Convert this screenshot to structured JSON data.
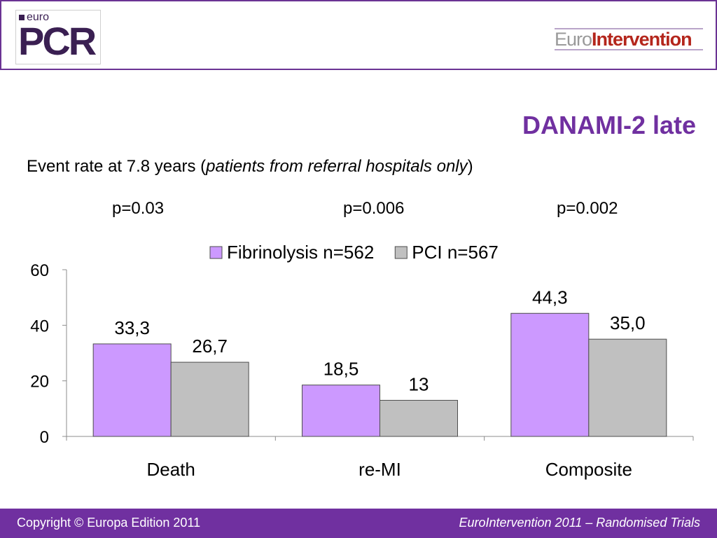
{
  "header": {
    "logo_left": {
      "small": "euro",
      "big": "PCR"
    },
    "logo_right": {
      "part1": "Euro",
      "part2": "Intervention"
    }
  },
  "slide": {
    "title": "DANAMI-2 late",
    "subtitle": {
      "prefix": "Event rate at 7.8 years (",
      "italic": "patients from referral hospitals only",
      "suffix": ")"
    },
    "pvalues": [
      "p=0.03",
      "p=0.006",
      "p=0.002"
    ]
  },
  "chart_data": {
    "type": "bar",
    "categories": [
      "Death",
      "re-MI",
      "Composite"
    ],
    "series": [
      {
        "name": "Fibrinolysis n=562",
        "color": "#cc99ff",
        "values": [
          33.3,
          18.5,
          44.3
        ],
        "labels": [
          "33,3",
          "18,5",
          "44,3"
        ]
      },
      {
        "name": "PCI n=567",
        "color": "#c0c0c0",
        "values": [
          26.7,
          13,
          35.0
        ],
        "labels": [
          "26,7",
          "13",
          "35,0"
        ]
      }
    ],
    "ylim": [
      0,
      60
    ],
    "yticks": [
      0,
      20,
      40,
      60
    ],
    "legend": "top",
    "grid": false
  },
  "footer": {
    "left": "Copyright © Europa Edition 2011",
    "right": "EuroIntervention 2011 – Randomised Trials"
  }
}
